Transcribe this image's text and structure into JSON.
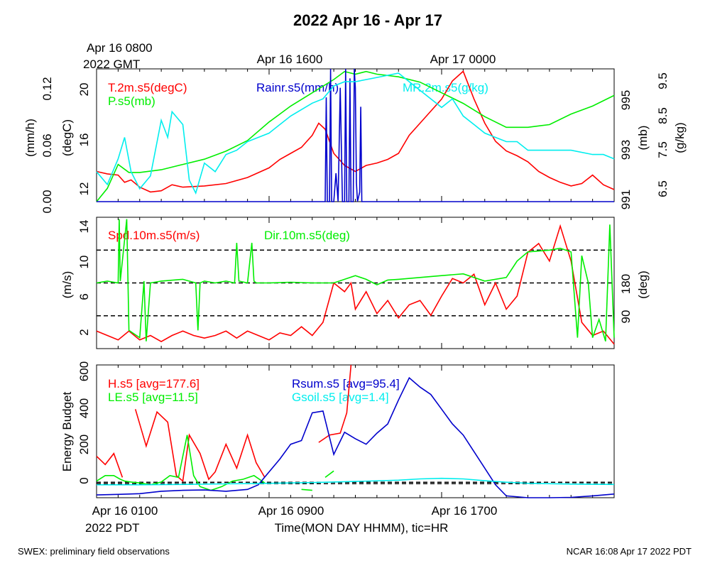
{
  "title": "2022 Apr 16 - Apr 17",
  "top_axis": {
    "start_label_line1": "Apr 16 0800",
    "start_label_line2": "2022 GMT",
    "labels": [
      "Apr 16 1600",
      "Apr 17 0000"
    ]
  },
  "bottom_axis": {
    "labels": [
      "Apr 16 0100",
      "Apr 16 0900",
      "Apr 16 1700"
    ],
    "tz_label": "2022 PDT",
    "xlabel": "Time(MON DAY HHMM), tic=HR"
  },
  "footer": {
    "left": "SWEX: preliminary field observations",
    "right": "NCAR 16:08 Apr 17 2022 PDT"
  },
  "colors": {
    "red": "#ff0000",
    "green": "#00ee00",
    "blue": "#0000cc",
    "cyan": "#00eeee",
    "black": "#000000"
  },
  "chart_data": [
    {
      "type": "line",
      "panel": "met",
      "x_unit": "hours since Apr 16 0100 PDT",
      "x_range": [
        0,
        24
      ],
      "axes": {
        "rain": {
          "label": "(mm/h)",
          "ticks": [
            "0.00",
            "0.06",
            "0.12"
          ],
          "range": [
            0,
            0.14
          ]
        },
        "temp": {
          "label": "(degC)",
          "ticks": [
            "12",
            "16",
            "20"
          ],
          "range": [
            11,
            22
          ]
        },
        "pres": {
          "label": "(mb)",
          "ticks": [
            "991",
            "993",
            "995"
          ],
          "range": [
            991,
            996
          ]
        },
        "mr": {
          "label": "(g/kg)",
          "ticks": [
            "6.5",
            "7.5",
            "8.5",
            "9.5"
          ],
          "range": [
            6.5,
            9.6
          ]
        }
      },
      "series": [
        {
          "name": "T.2m.s5(degC)",
          "color": "red",
          "axis": "temp",
          "x": [
            0,
            0.5,
            1,
            1.3,
            1.6,
            2,
            2.5,
            3,
            3.5,
            4,
            5,
            6,
            7,
            8,
            8.5,
            9,
            9.5,
            10,
            10.3,
            10.6,
            11,
            11.5,
            12,
            12.5,
            13,
            13.5,
            14,
            14.5,
            15,
            15.5,
            16,
            16.5,
            17,
            17.5,
            18,
            18.5,
            19,
            19.5,
            20,
            20.5,
            21,
            21.5,
            22,
            22.5,
            23,
            23.5,
            24
          ],
          "y": [
            13.5,
            13.3,
            13.2,
            12.6,
            12.8,
            12.2,
            11.8,
            11.9,
            12.4,
            12.2,
            12.3,
            12.5,
            13.0,
            13.8,
            14.5,
            15.0,
            15.5,
            16.5,
            17.5,
            17.0,
            15.0,
            14.0,
            13.5,
            14.0,
            14.2,
            14.5,
            15.0,
            16.5,
            17.5,
            18.5,
            19.5,
            21.0,
            21.8,
            19.5,
            17.5,
            16.0,
            15.2,
            14.8,
            14.3,
            13.5,
            13.0,
            12.6,
            12.3,
            12.5,
            13.2,
            12.4,
            12.0
          ]
        },
        {
          "name": "P.s5(mb)",
          "color": "green",
          "axis": "pres",
          "x": [
            0,
            0.5,
            1,
            1.5,
            2,
            3,
            4,
            5,
            6,
            7,
            8,
            9,
            10,
            11,
            11.5,
            12,
            12.5,
            13,
            14,
            15,
            15.5,
            16,
            17,
            18,
            19,
            20,
            21,
            22,
            23,
            24
          ],
          "y": [
            991.0,
            991.5,
            992.4,
            992.1,
            992.1,
            992.2,
            992.4,
            992.6,
            992.9,
            993.3,
            994.0,
            994.6,
            995.1,
            995.6,
            995.9,
            995.8,
            995.9,
            995.8,
            995.7,
            995.5,
            995.3,
            995.1,
            994.7,
            994.2,
            993.8,
            993.8,
            993.9,
            994.3,
            994.6,
            995.0
          ]
        },
        {
          "name": "Rainr.s5(mm/h)",
          "color": "blue",
          "axis": "rain",
          "x": [
            0,
            10.6,
            10.65,
            10.7,
            10.8,
            10.85,
            10.9,
            11.0,
            11.1,
            11.2,
            11.3,
            11.4,
            11.5,
            11.55,
            11.6,
            11.7,
            11.75,
            11.8,
            11.9,
            11.95,
            12.0,
            12.05,
            12.1,
            12.2,
            12.25,
            12.3,
            12.4,
            24
          ],
          "y": [
            0,
            0,
            0.11,
            0,
            0,
            0.14,
            0,
            0,
            0.03,
            0,
            0.12,
            0,
            0,
            0.14,
            0,
            0,
            0.13,
            0,
            0,
            0.14,
            0.12,
            0.02,
            0,
            0.01,
            0.1,
            0,
            0,
            0
          ]
        },
        {
          "name": "MR.2m.s5(g/kg)",
          "color": "cyan",
          "axis": "mr",
          "x": [
            0,
            0.5,
            1,
            1.3,
            1.6,
            2,
            2.5,
            3,
            3.3,
            3.5,
            4,
            4.3,
            4.6,
            5,
            5.5,
            6,
            6.5,
            7,
            7.5,
            8,
            9,
            10,
            10.5,
            11,
            11.5,
            12,
            13,
            14,
            14.5,
            15,
            15.5,
            16,
            16.5,
            17,
            17.5,
            18,
            18.5,
            19,
            19.5,
            20,
            21,
            22,
            23,
            23.5,
            24
          ],
          "y": [
            7.2,
            6.9,
            7.5,
            8.0,
            7.2,
            6.8,
            7.1,
            8.4,
            8.0,
            8.6,
            8.3,
            7.0,
            6.7,
            7.4,
            7.2,
            7.6,
            7.7,
            7.9,
            8.0,
            8.1,
            8.5,
            8.8,
            8.9,
            9.2,
            9.3,
            9.3,
            9.4,
            9.5,
            9.3,
            9.1,
            8.9,
            8.7,
            8.9,
            8.5,
            8.3,
            8.1,
            8.0,
            7.9,
            7.9,
            7.7,
            7.7,
            7.7,
            7.6,
            7.6,
            7.5
          ]
        }
      ]
    },
    {
      "type": "line",
      "panel": "wind",
      "x_unit": "hours since Apr 16 0100 PDT",
      "x_range": [
        0,
        24
      ],
      "axes": {
        "spd": {
          "label": "(m/s)",
          "ticks": [
            "2",
            "6",
            "10",
            "14"
          ],
          "range": [
            0,
            15
          ]
        },
        "dir": {
          "label": "(deg)",
          "ticks": [
            "90",
            "180"
          ],
          "range": [
            0,
            360
          ]
        }
      },
      "reference_lines_deg": [
        90,
        180,
        270
      ],
      "series": [
        {
          "name": "Spd.10m.s5(m/s)",
          "color": "red",
          "axis": "spd",
          "x": [
            0,
            0.5,
            1,
            1.5,
            2,
            2.5,
            3,
            3.5,
            4,
            4.5,
            5,
            5.5,
            6,
            6.5,
            7,
            7.5,
            8,
            8.5,
            9,
            9.5,
            10,
            10.5,
            11,
            11.5,
            11.8,
            12,
            12.5,
            13,
            13.5,
            14,
            14.5,
            15,
            15.5,
            16,
            16.5,
            17,
            17.5,
            18,
            18.5,
            19,
            19.5,
            20,
            20.5,
            21,
            21.5,
            22,
            22.5,
            23,
            23.5,
            24
          ],
          "y": [
            2.0,
            1.5,
            1.0,
            2.0,
            1.0,
            1.5,
            0.8,
            1.5,
            2.0,
            1.5,
            1.2,
            1.5,
            2.0,
            1.2,
            2.0,
            1.5,
            1.0,
            1.8,
            1.5,
            2.5,
            1.5,
            3.0,
            7.5,
            6.5,
            7.5,
            4.5,
            6.5,
            4.0,
            5.5,
            3.5,
            5.0,
            5.5,
            3.8,
            6.0,
            8.0,
            7.5,
            8.5,
            5.0,
            7.5,
            4.5,
            6.0,
            11.0,
            12.0,
            10.0,
            14.0,
            10.0,
            3.0,
            1.5,
            2.0,
            0.5
          ]
        },
        {
          "name": "Dir.10m.s5(deg)",
          "color": "green",
          "axis": "dir",
          "x": [
            0,
            0.5,
            1,
            1.05,
            1.1,
            1.4,
            1.5,
            2,
            2.2,
            2.3,
            2.5,
            3,
            4,
            4.6,
            4.7,
            4.8,
            5,
            5.5,
            6,
            6.4,
            6.5,
            6.6,
            7,
            7.2,
            7.3,
            7.4,
            8,
            9,
            10,
            11,
            11.5,
            12,
            12.5,
            13,
            13.5,
            14,
            15,
            16,
            17,
            18,
            19,
            19.5,
            20,
            21,
            21.5,
            22,
            22.3,
            22.5,
            22.8,
            23,
            23.3,
            23.6,
            23.8,
            24
          ],
          "y": [
            180,
            185,
            180,
            355,
            185,
            355,
            50,
            30,
            185,
            20,
            180,
            185,
            190,
            180,
            50,
            180,
            185,
            180,
            185,
            180,
            290,
            185,
            180,
            290,
            185,
            180,
            180,
            182,
            180,
            180,
            190,
            200,
            190,
            175,
            188,
            190,
            195,
            200,
            205,
            185,
            195,
            240,
            265,
            270,
            275,
            265,
            30,
            255,
            180,
            30,
            80,
            20,
            340,
            30
          ]
        }
      ]
    },
    {
      "type": "line",
      "panel": "energy",
      "x_unit": "hours since Apr 16 0100 PDT",
      "x_range": [
        0,
        24
      ],
      "axes": {
        "energy": {
          "label": "Energy Budget",
          "ticks": [
            "0",
            "200",
            "400",
            "600"
          ],
          "range": [
            -80,
            640
          ]
        }
      },
      "reference_lines": [
        0,
        0
      ],
      "series": [
        {
          "name": "H.s5 [avg=177.6]",
          "color": "red",
          "axis": "energy",
          "segments": [
            {
              "x": [
                0,
                0.4,
                0.8,
                1.2
              ],
              "y": [
                145,
                100,
                160,
                30
              ]
            },
            {
              "x": [
                1.8,
                2.3,
                2.8,
                3.3,
                3.7,
                4.0,
                4.3,
                4.8,
                5.2,
                5.5,
                6.0,
                6.5,
                7.0,
                7.4,
                7.8
              ],
              "y": [
                400,
                200,
                385,
                330,
                40,
                10,
                260,
                160,
                20,
                60,
                210,
                80,
                260,
                110,
                30
              ]
            },
            {
              "x": [
                10.3,
                10.8,
                11.3,
                11.6,
                11.8
              ],
              "y": [
                220,
                260,
                270,
                380,
                640
              ]
            }
          ]
        },
        {
          "name": "LE.s5 [avg=11.5]",
          "color": "green",
          "axis": "energy",
          "segments": [
            {
              "x": [
                0,
                0.4,
                0.8,
                1.1,
                1.3,
                1.6,
                2.0,
                2.5,
                3.0,
                3.4,
                3.8,
                4.2,
                4.5,
                4.8,
                5.3,
                5.8,
                6.3,
                6.8,
                7.3,
                7.8
              ],
              "y": [
                10,
                40,
                40,
                20,
                10,
                5,
                0,
                -10,
                5,
                40,
                30,
                260,
                40,
                -20,
                -40,
                -20,
                10,
                20,
                40,
                0
              ]
            },
            {
              "x": [
                9.5,
                10.0
              ],
              "y": [
                -35,
                -40
              ]
            },
            {
              "x": [
                10.6,
                11.0
              ],
              "y": [
                30,
                65
              ]
            }
          ]
        },
        {
          "name": "Rsum.s5 [avg=95.4]",
          "color": "blue",
          "axis": "energy",
          "x": [
            0,
            1,
            2,
            3,
            4,
            5,
            6,
            7,
            7.5,
            8,
            8.5,
            9,
            9.5,
            10,
            10.5,
            11,
            11.5,
            12,
            12.5,
            13,
            13.5,
            14,
            14.5,
            15,
            15.5,
            16,
            16.5,
            17,
            17.5,
            18,
            18.5,
            19,
            20,
            21,
            22,
            23,
            24
          ],
          "y": [
            -65,
            -62,
            -58,
            -45,
            -40,
            -38,
            -45,
            -35,
            -10,
            60,
            130,
            210,
            230,
            380,
            390,
            155,
            275,
            240,
            210,
            270,
            320,
            450,
            570,
            520,
            480,
            400,
            320,
            260,
            170,
            80,
            -10,
            -70,
            -80,
            -80,
            -78,
            -70,
            -60
          ]
        },
        {
          "name": "Gsoil.s5 [avg=1.4]",
          "color": "cyan",
          "axis": "energy",
          "x": [
            0,
            2,
            4,
            6,
            8,
            10,
            12,
            14,
            15,
            16,
            17,
            18,
            19,
            20,
            22,
            24
          ],
          "y": [
            -10,
            -10,
            -8,
            -5,
            -2,
            2,
            8,
            15,
            22,
            25,
            22,
            12,
            4,
            -2,
            -6,
            -8
          ]
        }
      ]
    }
  ]
}
